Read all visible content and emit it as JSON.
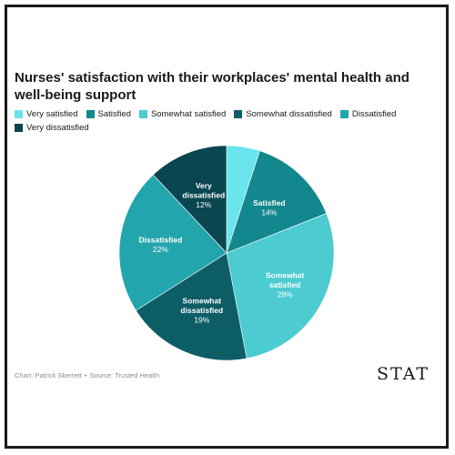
{
  "chart_data": {
    "type": "pie",
    "title": "Nurses' satisfaction with their workplaces' mental health and well-being support",
    "legend_position": "top",
    "slices": [
      {
        "name": "Very satisfied",
        "value": 5,
        "color": "#69e3ec",
        "label_lines": [],
        "pct": ""
      },
      {
        "name": "Satisfied",
        "value": 14,
        "color": "#13878e",
        "label_lines": [
          "Satisfied"
        ],
        "pct": "14%"
      },
      {
        "name": "Somewhat satisfied",
        "value": 28,
        "color": "#4ccbd0",
        "label_lines": [
          "Somewhat",
          "satisfied"
        ],
        "pct": "28%"
      },
      {
        "name": "Somewhat dissatisfied",
        "value": 19,
        "color": "#0d5d67",
        "label_lines": [
          "Somewhat",
          "dissatisfied"
        ],
        "pct": "19%"
      },
      {
        "name": "Dissatisfied",
        "value": 22,
        "color": "#23a5ad",
        "label_lines": [
          "Dissatisfied"
        ],
        "pct": "22%"
      },
      {
        "name": "Very dissatisfied",
        "value": 12,
        "color": "#0a4650",
        "label_lines": [
          "Very",
          "dissatisfied"
        ],
        "pct": "12%"
      }
    ]
  },
  "footer": {
    "credit": "Chart: Patrick Skerrett",
    "separator": "•",
    "source": "Source: Trusted Health"
  },
  "brand": {
    "logo_text": "STAT"
  }
}
